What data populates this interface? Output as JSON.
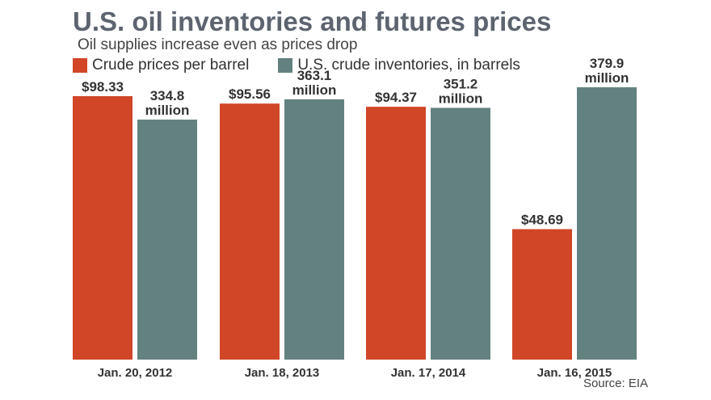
{
  "chart_data": {
    "type": "bar",
    "title": "U.S. oil inventories and futures prices",
    "subtitle": "Oil supplies increase even as prices drop",
    "categories": [
      "Jan. 20, 2012",
      "Jan. 18, 2013",
      "Jan. 17, 2014",
      "Jan. 16, 2015"
    ],
    "series": [
      {
        "name": "Crude prices per barrel",
        "color": "#d04627",
        "values": [
          98.33,
          95.56,
          94.37,
          48.69
        ],
        "labels": [
          [
            "$98.33"
          ],
          [
            "$95.56"
          ],
          [
            "$94.37"
          ],
          [
            "$48.69"
          ]
        ]
      },
      {
        "name": "U.S. crude inventories, in barrels",
        "color": "#63827f",
        "values": [
          334.8,
          363.1,
          351.2,
          379.9
        ],
        "labels": [
          [
            "334.8",
            "million"
          ],
          [
            "363.1",
            "million"
          ],
          [
            "351.2",
            "million"
          ],
          [
            "379.9",
            "million"
          ]
        ]
      }
    ],
    "source": "Source: EIA",
    "grid": false,
    "legend_position": "top-left"
  }
}
